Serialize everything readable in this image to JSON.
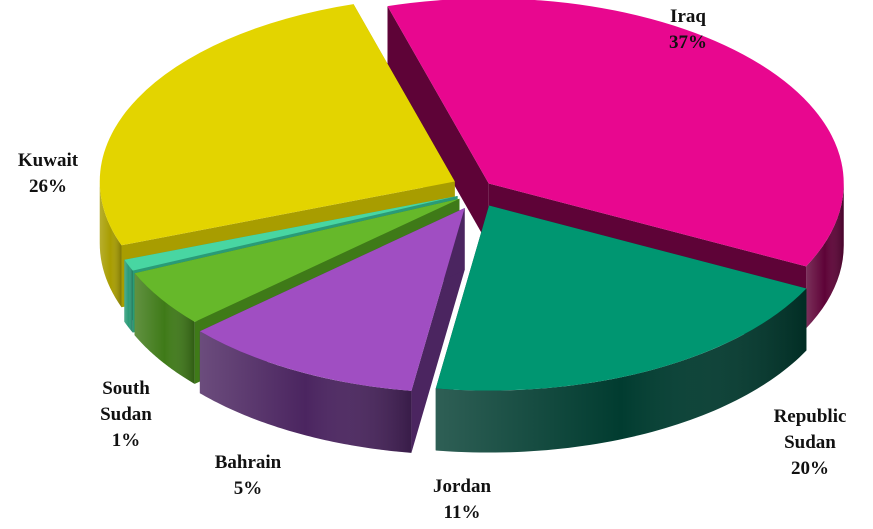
{
  "chart_data": {
    "type": "pie",
    "style": "3d-exploded",
    "slices": [
      {
        "label": "Iraq",
        "value": 37,
        "percent_label": "37%",
        "color": "#E8078F",
        "side_color": "#5E0337"
      },
      {
        "label": "Republic Sudan",
        "value": 20,
        "percent_label": "20%",
        "color": "#009671",
        "side_color": "#013C30"
      },
      {
        "label": "Jordan",
        "value": 11,
        "percent_label": "11%",
        "color": "#A04EC2",
        "side_color": "#4B2560"
      },
      {
        "label": "Bahrain",
        "value": 5,
        "percent_label": "5%",
        "color": "#66B82A",
        "side_color": "#3F7A18"
      },
      {
        "label": "South Sudan",
        "value": 1,
        "percent_label": "1%",
        "color": "#48D6A2",
        "side_color": "#2A9B77"
      },
      {
        "label": "Kuwait",
        "value": 26,
        "percent_label": "26%",
        "color": "#E3D400",
        "side_color": "#A89D00"
      }
    ]
  }
}
